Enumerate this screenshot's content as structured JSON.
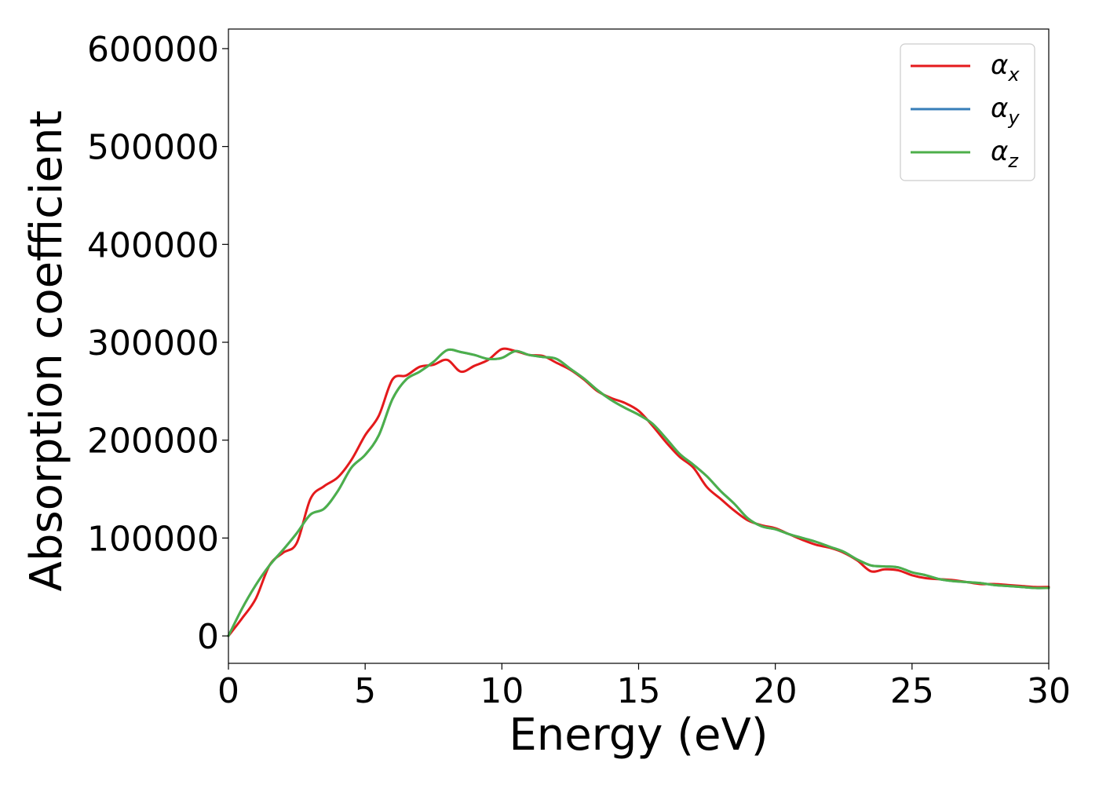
{
  "chart_data": {
    "type": "line",
    "xlabel": "Energy (eV)",
    "ylabel": "Absorption coefficient",
    "xlim": [
      0,
      30
    ],
    "ylim": [
      -28000,
      620000
    ],
    "xticks": [
      0,
      5,
      10,
      15,
      20,
      25,
      30
    ],
    "yticks": [
      0,
      100000,
      200000,
      300000,
      400000,
      500000,
      600000
    ],
    "xtick_labels": [
      "0",
      "5",
      "10",
      "15",
      "20",
      "25",
      "30"
    ],
    "ytick_labels": [
      "0",
      "100000",
      "200000",
      "300000",
      "400000",
      "500000",
      "600000"
    ],
    "grid": false,
    "legend_position": "top-right",
    "series": [
      {
        "name": "α",
        "subscript": "x",
        "color": "#e41a1c",
        "x": [
          0,
          0.5,
          1,
          1.5,
          2,
          2.5,
          3,
          3.5,
          4,
          4.5,
          5,
          5.5,
          6,
          6.5,
          7,
          7.5,
          8,
          8.5,
          9,
          9.5,
          10,
          10.5,
          11,
          11.5,
          12,
          12.5,
          13,
          13.5,
          14,
          14.5,
          15,
          15.5,
          16,
          16.5,
          17,
          17.5,
          18,
          18.5,
          19,
          19.5,
          20,
          20.5,
          21,
          21.5,
          22,
          22.5,
          23,
          23.5,
          24,
          24.5,
          25,
          25.5,
          26,
          26.5,
          27,
          27.5,
          28,
          28.5,
          29,
          29.5,
          30
        ],
        "y": [
          0,
          18000,
          38000,
          72000,
          85000,
          95000,
          140000,
          153000,
          162000,
          180000,
          205000,
          225000,
          262000,
          266000,
          275000,
          277000,
          282000,
          270000,
          276000,
          282000,
          293000,
          291000,
          287000,
          286000,
          279000,
          272000,
          262000,
          250000,
          243000,
          238000,
          230000,
          215000,
          198000,
          183000,
          172000,
          152000,
          140000,
          128000,
          118000,
          113000,
          110000,
          104000,
          98000,
          93000,
          90000,
          85000,
          77000,
          66000,
          68000,
          67000,
          62000,
          59000,
          58000,
          57000,
          55000,
          53000,
          53000,
          52000,
          51000,
          50000,
          50000
        ]
      },
      {
        "name": "α",
        "subscript": "y",
        "color": "#377eb8",
        "x": [
          0,
          0.5,
          1,
          1.5,
          2,
          2.5,
          3,
          3.5,
          4,
          4.5,
          5,
          5.5,
          6,
          6.5,
          7,
          7.5,
          8,
          8.5,
          9,
          9.5,
          10,
          10.5,
          11,
          11.5,
          12,
          12.5,
          13,
          13.5,
          14,
          14.5,
          15,
          15.5,
          16,
          16.5,
          17,
          17.5,
          18,
          18.5,
          19,
          19.5,
          20,
          20.5,
          21,
          21.5,
          22,
          22.5,
          23,
          23.5,
          24,
          24.5,
          25,
          25.5,
          26,
          26.5,
          27,
          27.5,
          28,
          28.5,
          29,
          29.5,
          30
        ],
        "y": [
          0,
          28000,
          52000,
          72000,
          88000,
          105000,
          124000,
          130000,
          148000,
          172000,
          185000,
          205000,
          242000,
          262000,
          270000,
          280000,
          292000,
          290000,
          287000,
          283000,
          284000,
          291000,
          287000,
          285000,
          283000,
          273000,
          263000,
          251000,
          241000,
          233000,
          226000,
          217000,
          202000,
          186000,
          175000,
          163000,
          148000,
          135000,
          120000,
          112000,
          109000,
          104000,
          100000,
          96000,
          91000,
          86000,
          78000,
          72000,
          71000,
          70000,
          65000,
          62000,
          58000,
          56000,
          55000,
          54000,
          52000,
          51000,
          50000,
          49000,
          49000
        ]
      },
      {
        "name": "α",
        "subscript": "z",
        "color": "#4daf4a",
        "x": [
          0,
          0.5,
          1,
          1.5,
          2,
          2.5,
          3,
          3.5,
          4,
          4.5,
          5,
          5.5,
          6,
          6.5,
          7,
          7.5,
          8,
          8.5,
          9,
          9.5,
          10,
          10.5,
          11,
          11.5,
          12,
          12.5,
          13,
          13.5,
          14,
          14.5,
          15,
          15.5,
          16,
          16.5,
          17,
          17.5,
          18,
          18.5,
          19,
          19.5,
          20,
          20.5,
          21,
          21.5,
          22,
          22.5,
          23,
          23.5,
          24,
          24.5,
          25,
          25.5,
          26,
          26.5,
          27,
          27.5,
          28,
          28.5,
          29,
          29.5,
          30
        ],
        "y": [
          0,
          28000,
          52000,
          72000,
          88000,
          105000,
          124000,
          130000,
          148000,
          172000,
          185000,
          205000,
          242000,
          262000,
          270000,
          280000,
          292000,
          290000,
          287000,
          283000,
          284000,
          291000,
          287000,
          285000,
          283000,
          273000,
          263000,
          251000,
          241000,
          233000,
          226000,
          217000,
          202000,
          186000,
          175000,
          163000,
          148000,
          135000,
          120000,
          112000,
          109000,
          104000,
          100000,
          96000,
          91000,
          86000,
          78000,
          72000,
          71000,
          70000,
          65000,
          62000,
          58000,
          56000,
          55000,
          54000,
          52000,
          51000,
          50000,
          49000,
          49000
        ]
      }
    ]
  }
}
